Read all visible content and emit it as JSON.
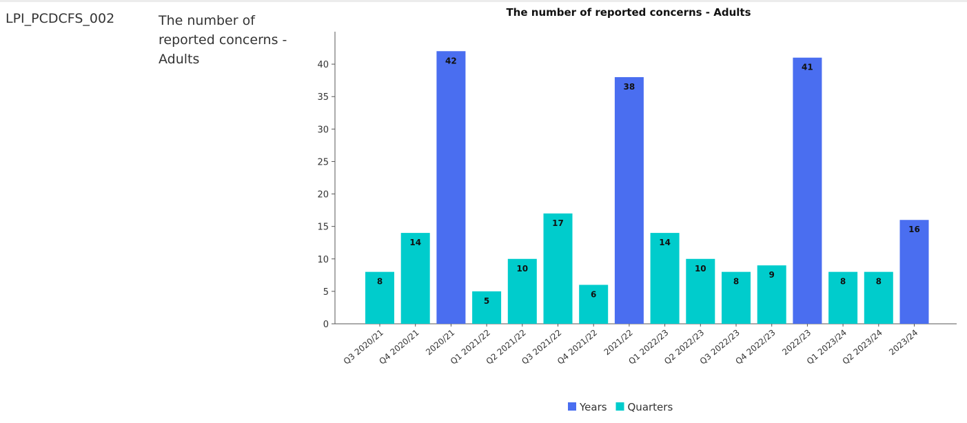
{
  "row": {
    "code": "LPI_PCDCFS_002",
    "description": "The number of reported concerns - Adults"
  },
  "colors": {
    "years": "#4a6ef0",
    "quarters": "#00cccc"
  },
  "chart_data": {
    "type": "bar",
    "title": "The number of reported concerns - Adults",
    "xlabel": "",
    "ylabel": "",
    "ylim": [
      0,
      45
    ],
    "yticks": [
      0,
      5,
      10,
      15,
      20,
      25,
      30,
      35,
      40
    ],
    "grid": false,
    "legend_position": "bottom",
    "legend": [
      {
        "name": "Years",
        "color": "#4a6ef0"
      },
      {
        "name": "Quarters",
        "color": "#00cccc"
      }
    ],
    "categories": [
      "Q3 2020/21",
      "Q4 2020/21",
      "2020/21",
      "Q1 2021/22",
      "Q2 2021/22",
      "Q3 2021/22",
      "Q4 2021/22",
      "2021/22",
      "Q1 2022/23",
      "Q2 2022/23",
      "Q3 2022/23",
      "Q4 2022/23",
      "2022/23",
      "Q1 2023/24",
      "Q2 2023/24",
      "2023/24"
    ],
    "values": [
      8,
      14,
      42,
      5,
      10,
      17,
      6,
      38,
      14,
      10,
      8,
      9,
      41,
      8,
      8,
      16
    ],
    "series_of_bar": [
      "Quarters",
      "Quarters",
      "Years",
      "Quarters",
      "Quarters",
      "Quarters",
      "Quarters",
      "Years",
      "Quarters",
      "Quarters",
      "Quarters",
      "Quarters",
      "Years",
      "Quarters",
      "Quarters",
      "Years"
    ]
  }
}
